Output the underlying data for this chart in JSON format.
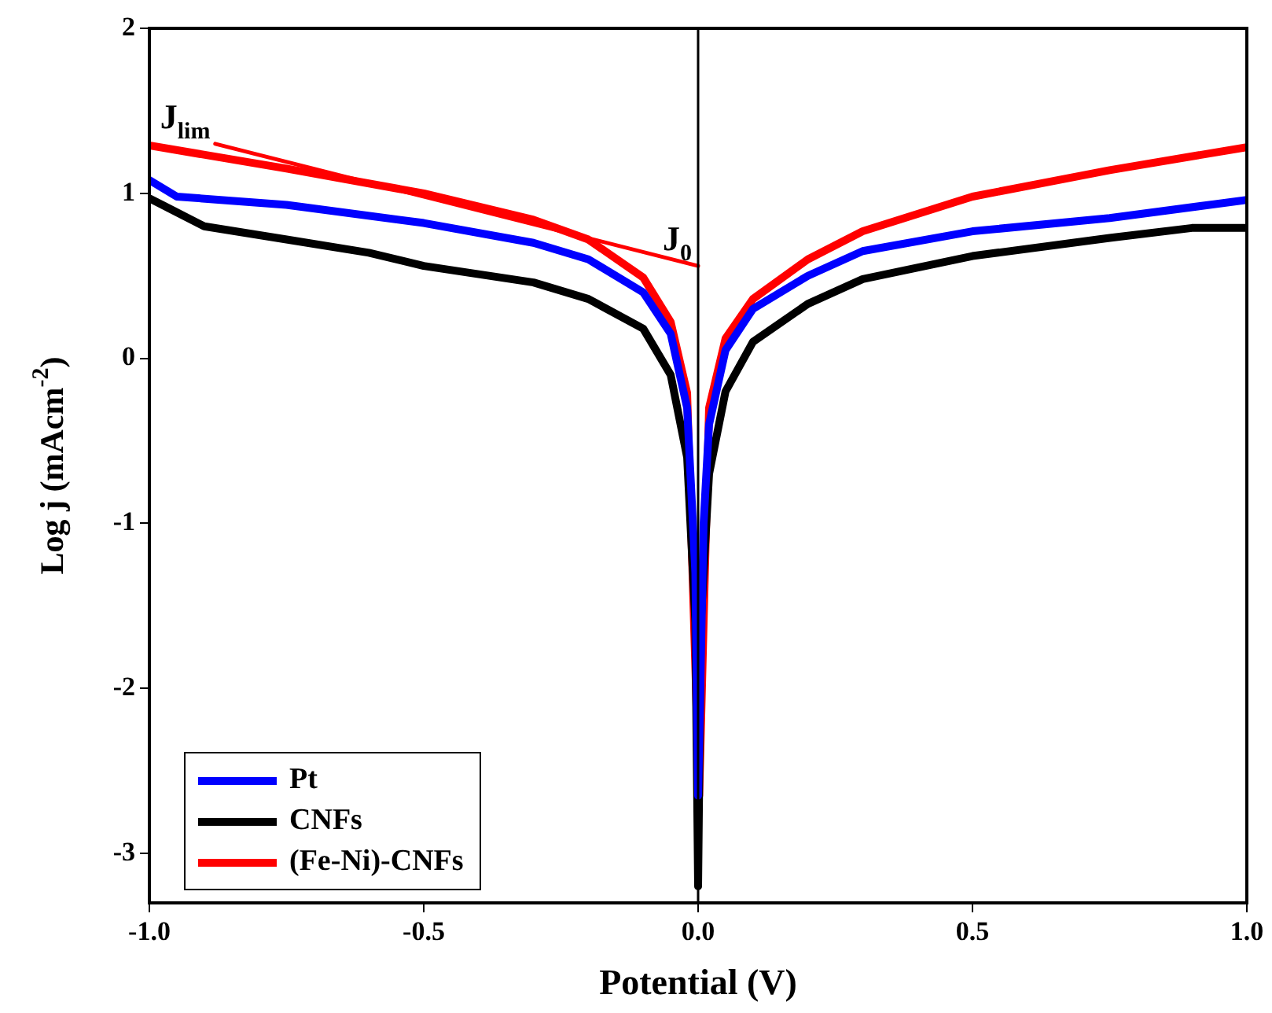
{
  "chart_data": {
    "type": "line",
    "xlabel": "Potential (V)",
    "ylabel": "Log j (mAcm$^{-2}$)",
    "xlim": [
      -1.0,
      1.0
    ],
    "xticks": [
      {
        "value": -1,
        "label": "-1.0"
      },
      {
        "value": -0.5,
        "label": "-0.5"
      },
      {
        "value": 0,
        "label": "0.0"
      },
      {
        "value": 0.5,
        "label": "0.5"
      },
      {
        "value": 1,
        "label": "1.0"
      }
    ],
    "ylim": [
      -3.3,
      2
    ],
    "yticks": [
      -3,
      -2,
      -1,
      0,
      1,
      2
    ],
    "grid": false,
    "legend": "bottom left",
    "marker": "none",
    "line_style": "solid",
    "series": [
      {
        "name": "Pt",
        "color": "#0000ff",
        "x": [
          -1,
          -0.95,
          -0.75,
          -0.5,
          -0.3,
          -0.2,
          -0.1,
          -0.05,
          -0.02,
          -0.005,
          0,
          0.01,
          0.02,
          0.05,
          0.1,
          0.2,
          0.3,
          0.5,
          0.75,
          1
        ],
        "values": [
          1.08,
          0.98,
          0.93,
          0.82,
          0.7,
          0.6,
          0.4,
          0.15,
          -0.3,
          -1.3,
          -2.65,
          -1.0,
          -0.4,
          0.05,
          0.3,
          0.5,
          0.65,
          0.77,
          0.85,
          0.96
        ]
      },
      {
        "name": "CNFs",
        "color": "#000000",
        "x": [
          -1,
          -0.9,
          -0.75,
          -0.6,
          -0.5,
          -0.3,
          -0.2,
          -0.1,
          -0.05,
          -0.02,
          -0.005,
          0,
          0.005,
          0.02,
          0.05,
          0.1,
          0.2,
          0.3,
          0.5,
          0.75,
          0.9,
          1
        ],
        "values": [
          0.97,
          0.8,
          0.72,
          0.64,
          0.56,
          0.46,
          0.36,
          0.18,
          -0.1,
          -0.6,
          -1.6,
          -3.2,
          -1.6,
          -0.7,
          -0.2,
          0.1,
          0.33,
          0.48,
          0.62,
          0.73,
          0.79,
          0.79
        ]
      },
      {
        "name": "(Fe-Ni)-CNFs",
        "color": "#ff0000",
        "x": [
          -1,
          -0.75,
          -0.5,
          -0.3,
          -0.2,
          -0.1,
          -0.05,
          -0.02,
          0.002,
          0.02,
          0.05,
          0.1,
          0.2,
          0.3,
          0.5,
          0.75,
          1
        ],
        "values": [
          1.29,
          1.15,
          1.0,
          0.84,
          0.72,
          0.49,
          0.22,
          -0.21,
          -2.65,
          -0.3,
          0.12,
          0.36,
          0.6,
          0.77,
          0.98,
          1.14,
          1.28
        ]
      },
      {
        "color": "#ff0000",
        "x": [
          -0.88,
          0
        ],
        "values": [
          1.3,
          0.56
        ]
      }
    ],
    "ref_lines": [
      {
        "axis": "x",
        "value": 0,
        "color": "#000000"
      }
    ],
    "annotations": [
      {
        "text": "J$_{lim}$",
        "x": -0.88,
        "y": 1.3
      },
      {
        "text": "J$_{0}$",
        "x": 0,
        "y": 0.56
      }
    ]
  }
}
